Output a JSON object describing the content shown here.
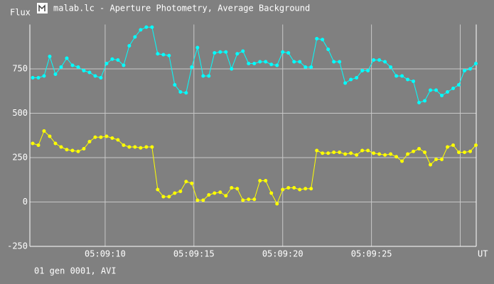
{
  "chart_data": {
    "type": "line",
    "title": "malab.lc - Aperture Photometry, Average Background",
    "y_label": "Flux",
    "x_label": "UT",
    "status": "01 gen 0001, AVI",
    "x": [
      5.92,
      6.24,
      6.56,
      6.88,
      7.2,
      7.52,
      7.84,
      8.16,
      8.48,
      8.8,
      9.12,
      9.44,
      9.76,
      10.08,
      10.4,
      10.72,
      11.04,
      11.36,
      11.68,
      12.0,
      12.32,
      12.64,
      12.96,
      13.28,
      13.6,
      13.92,
      14.24,
      14.56,
      14.88,
      15.2,
      15.52,
      15.84,
      16.16,
      16.48,
      16.8,
      17.12,
      17.44,
      17.76,
      18.08,
      18.4,
      18.72,
      19.04,
      19.36,
      19.68,
      20.0,
      20.32,
      20.64,
      20.96,
      21.28,
      21.6,
      21.92,
      22.24,
      22.56,
      22.88,
      23.2,
      23.52,
      23.84,
      24.16,
      24.48,
      24.8,
      25.12,
      25.44,
      25.76,
      26.08,
      26.4,
      26.72,
      27.04,
      27.36,
      27.68,
      28.0,
      28.32,
      28.64,
      28.96,
      29.28,
      29.6,
      29.92,
      30.24,
      30.56,
      30.88
    ],
    "series": [
      {
        "color": "#00ffff",
        "values": [
          700,
          700,
          710,
          820,
          720,
          760,
          810,
          770,
          760,
          740,
          730,
          710,
          700,
          780,
          805,
          800,
          770,
          880,
          930,
          970,
          985,
          985,
          835,
          830,
          825,
          660,
          620,
          615,
          760,
          870,
          710,
          710,
          840,
          845,
          845,
          750,
          835,
          850,
          780,
          780,
          790,
          790,
          775,
          770,
          845,
          840,
          790,
          790,
          760,
          760,
          920,
          915,
          860,
          790,
          790,
          670,
          690,
          700,
          740,
          740,
          800,
          800,
          790,
          760,
          710,
          710,
          690,
          680,
          560,
          570,
          630,
          630,
          600,
          620,
          640,
          660,
          740,
          750,
          780
        ]
      },
      {
        "color": "#ffff00",
        "values": [
          330,
          320,
          400,
          370,
          330,
          310,
          295,
          290,
          285,
          300,
          340,
          365,
          365,
          370,
          360,
          350,
          320,
          310,
          310,
          305,
          310,
          310,
          70,
          30,
          30,
          50,
          60,
          115,
          105,
          10,
          10,
          40,
          50,
          55,
          35,
          80,
          75,
          10,
          15,
          15,
          120,
          120,
          50,
          -10,
          70,
          80,
          80,
          70,
          75,
          75,
          290,
          275,
          275,
          280,
          280,
          270,
          275,
          265,
          290,
          290,
          275,
          270,
          265,
          270,
          255,
          230,
          270,
          285,
          300,
          280,
          210,
          240,
          240,
          310,
          320,
          280,
          280,
          285,
          320
        ]
      }
    ],
    "xlim": [
      5.76,
      30.9
    ],
    "ylim": [
      -250,
      1000
    ],
    "xticks": [
      {
        "value": 10,
        "label": "05:09:10"
      },
      {
        "value": 15,
        "label": "05:09:15"
      },
      {
        "value": 20,
        "label": "05:09:20"
      },
      {
        "value": 25,
        "label": "05:09:25"
      },
      {
        "value": 30,
        "label": null
      }
    ],
    "yticks": [
      -250,
      0,
      250,
      500,
      750
    ],
    "grid": true
  }
}
